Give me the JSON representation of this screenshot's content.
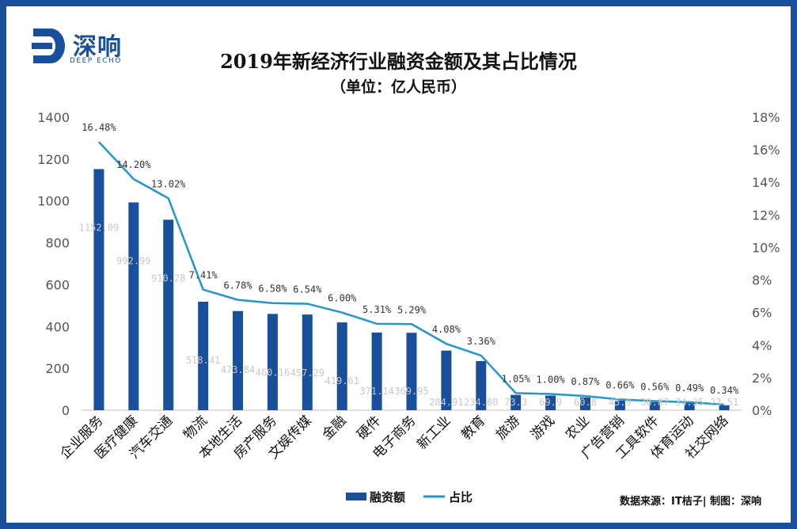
{
  "logo": {
    "brand": "深响",
    "sub": "DEEP ECHO"
  },
  "source": "数据来源：IT桔子| 制图：深响",
  "colors": {
    "bar": "#1a4f9c",
    "line": "#2196cf",
    "frame": "#1a4f9c",
    "axis_text": "#555555"
  },
  "chart_data": {
    "type": "bar",
    "title": "2019年新经济行业融资金额及其占比情况",
    "subtitle": "（单位：亿人民币）",
    "categories": [
      "企业服务",
      "医疗健康",
      "汽车交通",
      "物流",
      "本地生活",
      "房产服务",
      "文娱传媒",
      "金融",
      "硬件",
      "电子商务",
      "新工业",
      "教育",
      "旅游",
      "游戏",
      "农业",
      "广告营销",
      "工具软件",
      "体育运动",
      "社交网络"
    ],
    "series": [
      {
        "name": "融资额",
        "type": "bar",
        "axis": "left",
        "values": [
          1152.09,
          992.99,
          910.28,
          518.41,
          473.84,
          460.16,
          457.29,
          419.61,
          371.14,
          369.95,
          284.91,
          234.8,
          73.3,
          69.9,
          60.8,
          45.9,
          38.87,
          34.35,
          23.51
        ],
        "labels": [
          "1152.09",
          "992.99",
          "910.28",
          "518.41",
          "473.84",
          "460.16",
          "457.29",
          "419.61",
          "371.14",
          "369.95",
          "284.91",
          "234.80",
          "73.3",
          "69.9",
          "60.8",
          "45.9",
          "38.87",
          "34.35",
          "23.51"
        ]
      },
      {
        "name": "占比",
        "type": "line",
        "axis": "right",
        "values": [
          16.48,
          14.2,
          13.02,
          7.41,
          6.78,
          6.58,
          6.54,
          6.0,
          5.31,
          5.29,
          4.08,
          3.36,
          1.05,
          1.0,
          0.87,
          0.66,
          0.56,
          0.49,
          0.34
        ],
        "labels": [
          "16.48%",
          "14.20%",
          "13.02%",
          "7.41%",
          "6.78%",
          "6.58%",
          "6.54%",
          "6.00%",
          "5.31%",
          "5.29%",
          "4.08%",
          "3.36%",
          "1.05%",
          "1.00%",
          "0.87%",
          "0.66%",
          "0.56%",
          "0.49%",
          "0.34%"
        ]
      }
    ],
    "ylim": [
      0,
      1400
    ],
    "y_ticks": [
      "0",
      "200",
      "400",
      "600",
      "800",
      "1000",
      "1200",
      "1400"
    ],
    "y2lim": [
      0,
      18
    ],
    "y2_ticks": [
      "0%",
      "2%",
      "4%",
      "6%",
      "8%",
      "10%",
      "12%",
      "14%",
      "16%",
      "18%"
    ],
    "legend": [
      "融资额",
      "占比"
    ],
    "legend_position": "bottom",
    "grid": false
  }
}
